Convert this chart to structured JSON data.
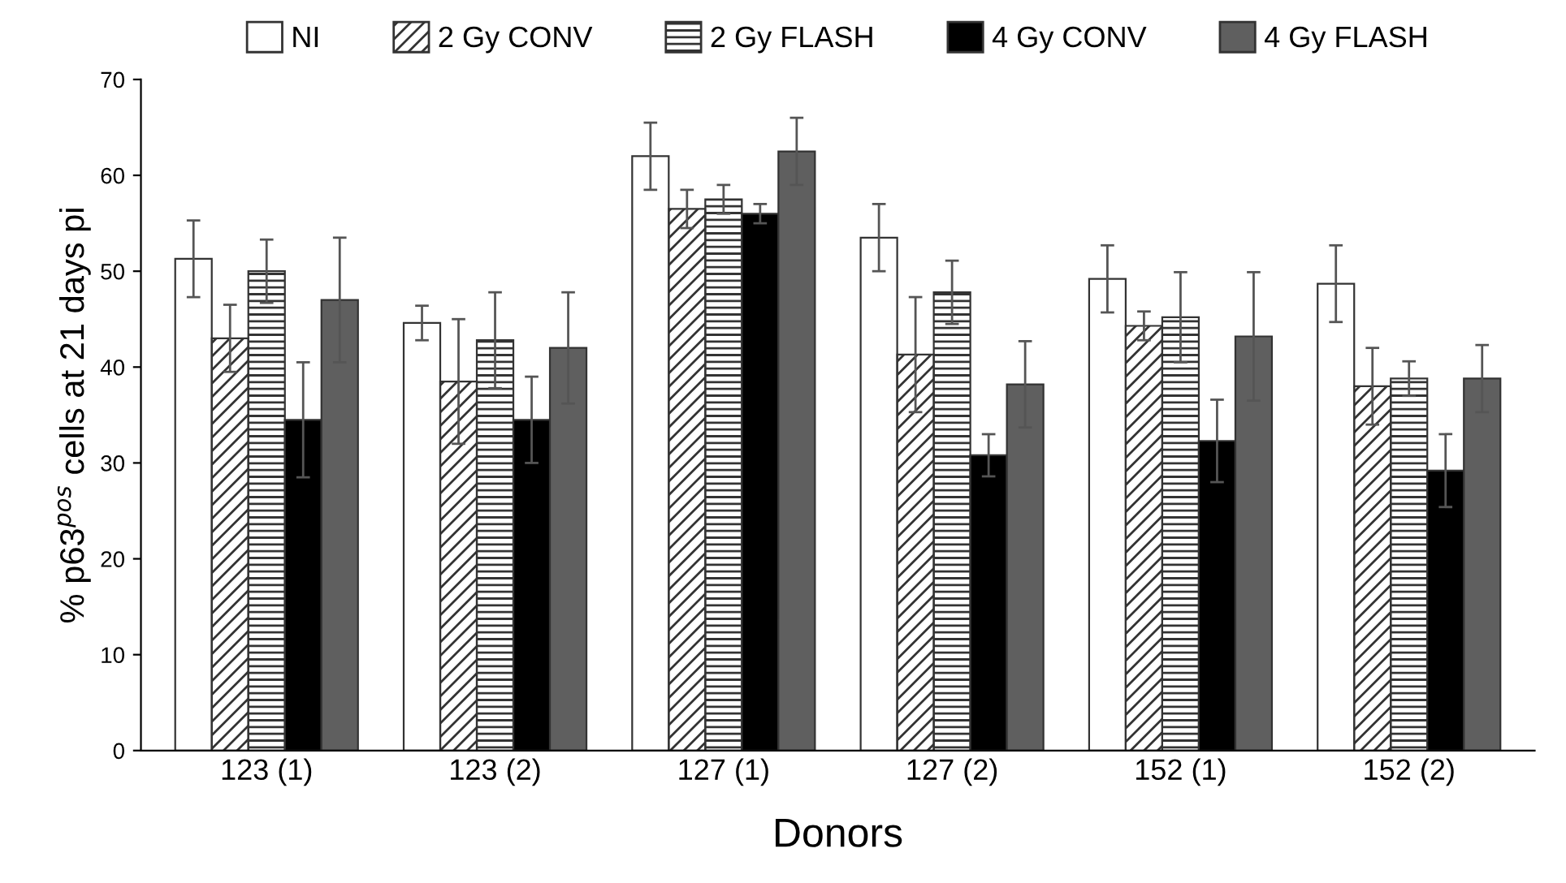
{
  "chart_data": {
    "type": "bar",
    "xlabel": "Donors",
    "ylabel": "% p63$^{pos}$ cells at 21 days pi",
    "categories": [
      "123 (1)",
      "123 (2)",
      "127 (1)",
      "127 (2)",
      "152 (1)",
      "152 (2)"
    ],
    "series": [
      {
        "name": "NI",
        "color": "#ffffff",
        "values": [
          51.3,
          44.6,
          62,
          53.5,
          49.2,
          48.7
        ],
        "errors": [
          4,
          1.8,
          3.5,
          3.5,
          3.5,
          4
        ]
      },
      {
        "name": "2 Gy CONV",
        "color": "#333333",
        "values": [
          43,
          38.5,
          56.5,
          41.3,
          44.3,
          38
        ],
        "errors": [
          3.5,
          6.5,
          2,
          6,
          1.5,
          4
        ]
      },
      {
        "name": "2 Gy FLASH",
        "color": "#333333",
        "values": [
          50,
          42.8,
          57.5,
          47.8,
          45.2,
          38.8
        ],
        "errors": [
          3.3,
          5,
          1.5,
          3.3,
          4.7,
          1.8
        ]
      },
      {
        "name": "4 Gy CONV",
        "color": "#000000",
        "values": [
          34.5,
          34.5,
          56,
          30.8,
          32.3,
          29.2
        ],
        "errors": [
          6,
          4.5,
          1,
          2.2,
          4.3,
          3.8
        ]
      },
      {
        "name": "4 Gy FLASH",
        "color": "#5f5f5f",
        "values": [
          47,
          42,
          62.5,
          38.2,
          43.2,
          38.8
        ],
        "errors": [
          6.5,
          5.8,
          3.5,
          4.5,
          6.7,
          3.5
        ]
      }
    ],
    "ylim": [
      0,
      70
    ],
    "yticks": [
      0,
      10,
      20,
      30,
      40,
      50,
      60,
      70
    ],
    "grid": false,
    "legend": "top"
  }
}
